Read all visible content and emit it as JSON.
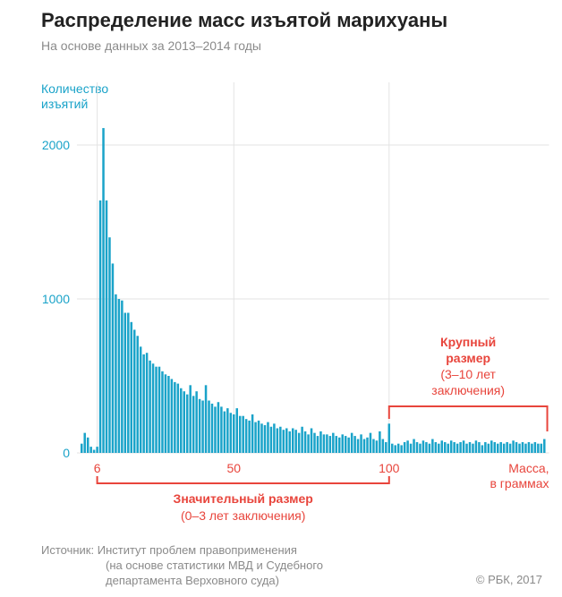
{
  "header": {
    "title": "Распределение масс изъятой марихуаны",
    "subtitle": "На основе данных за 2013–2014 годы"
  },
  "colors": {
    "bar": "#1aa3c9",
    "accent": "#e8453c",
    "grid": "#e3e3e3",
    "title": "#222222",
    "muted": "#8a8a8a"
  },
  "chart_data": {
    "type": "bar",
    "title": "Распределение масс изъятой марихуаны",
    "subtitle": "На основе данных за 2013–2014 годы",
    "ylabel_lines": [
      "Количество",
      "изъятий"
    ],
    "xlabel_lines": [
      "Масса,",
      "в граммах"
    ],
    "ylim": [
      0,
      2200
    ],
    "yticks": [
      0,
      1000,
      2000
    ],
    "xticks": [
      6,
      50,
      100
    ],
    "grid": true,
    "x": [
      1,
      2,
      3,
      4,
      5,
      6,
      7,
      8,
      9,
      10,
      11,
      12,
      13,
      14,
      15,
      16,
      17,
      18,
      19,
      20,
      21,
      22,
      23,
      24,
      25,
      26,
      27,
      28,
      29,
      30,
      31,
      32,
      33,
      34,
      35,
      36,
      37,
      38,
      39,
      40,
      41,
      42,
      43,
      44,
      45,
      46,
      47,
      48,
      49,
      50,
      51,
      52,
      53,
      54,
      55,
      56,
      57,
      58,
      59,
      60,
      61,
      62,
      63,
      64,
      65,
      66,
      67,
      68,
      69,
      70,
      71,
      72,
      73,
      74,
      75,
      76,
      77,
      78,
      79,
      80,
      81,
      82,
      83,
      84,
      85,
      86,
      87,
      88,
      89,
      90,
      91,
      92,
      93,
      94,
      95,
      96,
      97,
      98,
      99,
      100,
      101,
      102,
      103,
      104,
      105,
      106,
      107,
      108,
      109,
      110,
      111,
      112,
      113,
      114,
      115,
      116,
      117,
      118,
      119,
      120,
      121,
      122,
      123,
      124,
      125,
      126,
      127,
      128,
      129,
      130,
      131,
      132,
      133,
      134,
      135,
      136,
      137,
      138,
      139,
      140,
      141,
      142,
      143,
      144,
      145,
      146,
      147,
      148,
      149,
      150
    ],
    "values": [
      60,
      130,
      100,
      40,
      20,
      40,
      1640,
      2110,
      1640,
      1400,
      1230,
      1030,
      1000,
      990,
      910,
      910,
      850,
      800,
      760,
      690,
      640,
      650,
      600,
      580,
      560,
      560,
      530,
      510,
      500,
      480,
      460,
      450,
      420,
      400,
      380,
      440,
      370,
      400,
      350,
      340,
      440,
      340,
      320,
      300,
      330,
      300,
      270,
      290,
      260,
      250,
      290,
      240,
      240,
      220,
      210,
      250,
      200,
      210,
      190,
      180,
      200,
      170,
      190,
      160,
      170,
      150,
      160,
      140,
      160,
      150,
      130,
      170,
      140,
      120,
      160,
      130,
      110,
      140,
      120,
      120,
      110,
      130,
      110,
      100,
      120,
      110,
      100,
      130,
      110,
      90,
      120,
      90,
      100,
      130,
      90,
      80,
      140,
      90,
      70,
      190,
      60,
      50,
      60,
      50,
      70,
      80,
      60,
      90,
      70,
      60,
      80,
      70,
      60,
      90,
      70,
      60,
      80,
      70,
      60,
      80,
      70,
      60,
      70,
      80,
      60,
      70,
      60,
      80,
      70,
      50,
      70,
      60,
      80,
      70,
      60,
      70,
      60,
      70,
      60,
      80,
      70,
      60,
      70,
      60,
      70,
      60,
      70,
      60,
      60,
      90
    ],
    "annotations": {
      "significant": {
        "label": "Значительный размер",
        "sub": "(0–3 лет заключения)",
        "from": 6,
        "to": 100
      },
      "large": {
        "label_lines": [
          "Крупный",
          "размер"
        ],
        "sub_lines": [
          "(3–10 лет",
          "заключения)"
        ],
        "from": 100
      }
    }
  },
  "footer": {
    "source_line1": "Источник:  Институт проблем правоприменения",
    "source_line2": "(на основе статистики МВД и Судебного",
    "source_line3": "департамента Верховного суда)",
    "copyright": "© РБК, 2017"
  }
}
